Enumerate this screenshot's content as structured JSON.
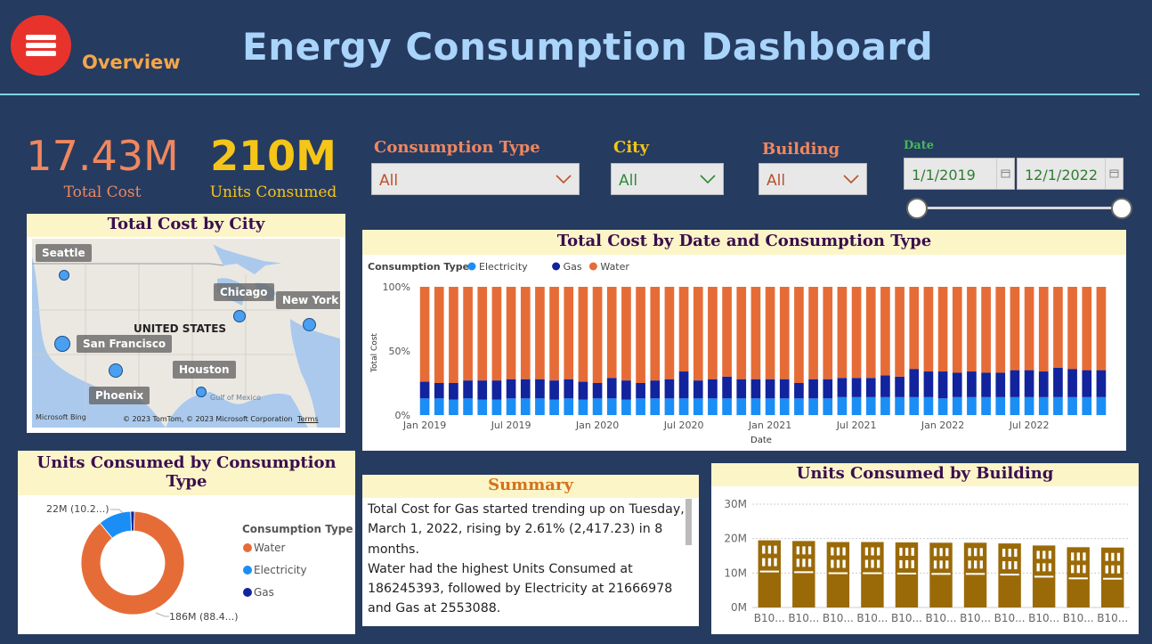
{
  "header": {
    "title": "Energy Consumption Dashboard",
    "nav_label": "Overview",
    "menu_icon": "hamburger-menu-icon"
  },
  "kpis": {
    "total_cost_value": "17.43M",
    "total_cost_label": "Total Cost",
    "units_value": "210M",
    "units_label": "Units Consumed"
  },
  "slicers": {
    "consumption_type": {
      "title": "Consumption Type",
      "value": "All"
    },
    "city": {
      "title": "City",
      "value": "All"
    },
    "building": {
      "title": "Building",
      "value": "All"
    },
    "date": {
      "title": "Date",
      "start": "1/1/2019",
      "end": "12/1/2022",
      "range_fraction": [
        0,
        1
      ]
    }
  },
  "colors": {
    "electricity": "#1a8ef5",
    "gas": "#12239e",
    "water": "#e66c37",
    "building_bar": "#9a6a08",
    "kpi_cost": "#f0875e",
    "kpi_units": "#f5c518"
  },
  "map": {
    "title": "Total Cost by City",
    "country_label": "UNITED STATES",
    "cities": [
      {
        "name": "Seattle"
      },
      {
        "name": "Chicago"
      },
      {
        "name": "New York"
      },
      {
        "name": "San Francisco"
      },
      {
        "name": "Houston"
      },
      {
        "name": "Phoenix"
      }
    ],
    "attribution_brand": "Microsoft Bing",
    "attribution_copyright": "© 2023 TomTom, © 2023 Microsoft Corporation",
    "attribution_terms": "Terms",
    "gulf_label": "Gulf of Mexico"
  },
  "stack_chart": {
    "title": "Total Cost by Date and Consumption Type",
    "legend_title": "Consumption Type",
    "xlabel": "Date",
    "ylabel": "Total Cost"
  },
  "donut_chart": {
    "title": "Units Consumed by Consumption Type",
    "legend_title": "Consumption Type",
    "label_top": "22M (10.2...)",
    "label_bottom": "186M (88.4...)"
  },
  "summary": {
    "title": "Summary",
    "text": "Total Cost for Gas started trending up on Tuesday, March 1, 2022, rising by 2.61% (2,417.23) in 8 months.\nWater had the highest Units Consumed at 186245393, followed by Electricity at 21666978 and Gas at 2553088."
  },
  "building_chart": {
    "title": "Units Consumed by Building"
  },
  "chart_data": [
    {
      "type": "bar",
      "stacked": "percent",
      "title": "Total Cost by Date and Consumption Type",
      "xlabel": "Date",
      "ylabel": "Total Cost",
      "x_tick_labels": [
        "Jan 2019",
        "Jul 2019",
        "Jan 2020",
        "Jul 2020",
        "Jan 2021",
        "Jul 2021",
        "Jan 2022",
        "Jul 2022"
      ],
      "y_tick_labels": [
        "0%",
        "50%",
        "100%"
      ],
      "ylim": [
        0,
        100
      ],
      "legend_position": "top-left",
      "series": [
        {
          "name": "Electricity",
          "values": [
            13,
            13,
            12,
            13,
            12,
            12,
            13,
            13,
            13,
            12,
            13,
            12,
            13,
            13,
            12,
            13,
            13,
            13,
            13,
            13,
            13,
            13,
            13,
            13,
            13,
            13,
            13,
            13,
            13,
            14,
            14,
            14,
            14,
            14,
            14,
            14,
            13,
            14,
            14,
            14,
            14,
            14,
            14,
            14,
            14,
            14,
            14,
            14
          ]
        },
        {
          "name": "Gas",
          "values": [
            13,
            12,
            13,
            14,
            15,
            15,
            15,
            15,
            15,
            15,
            15,
            14,
            12,
            16,
            15,
            12,
            14,
            15,
            21,
            14,
            15,
            17,
            15,
            15,
            15,
            15,
            12,
            15,
            15,
            15,
            15,
            15,
            17,
            16,
            22,
            20,
            21,
            19,
            20,
            19,
            19,
            21,
            21,
            20,
            23,
            22,
            21,
            21
          ]
        },
        {
          "name": "Water",
          "values": [
            74,
            75,
            75,
            73,
            73,
            73,
            72,
            72,
            72,
            73,
            72,
            74,
            75,
            71,
            73,
            75,
            73,
            72,
            66,
            73,
            72,
            70,
            72,
            72,
            72,
            72,
            75,
            72,
            72,
            71,
            71,
            71,
            69,
            70,
            64,
            66,
            66,
            67,
            66,
            67,
            67,
            65,
            65,
            66,
            63,
            64,
            65,
            65
          ]
        }
      ]
    },
    {
      "type": "pie",
      "donut": true,
      "title": "Units Consumed by Consumption Type",
      "legend_position": "right",
      "categories": [
        "Water",
        "Electricity",
        "Gas"
      ],
      "values": [
        186245393,
        21666978,
        2553088
      ]
    },
    {
      "type": "bar",
      "title": "Units Consumed by Building",
      "categories": [
        "B10...",
        "B10...",
        "B10...",
        "B10...",
        "B10...",
        "B10...",
        "B10...",
        "B10...",
        "B10...",
        "B10...",
        "B10..."
      ],
      "values": [
        19.5,
        19.3,
        19.0,
        19.0,
        18.9,
        18.8,
        18.8,
        18.6,
        18.0,
        17.5,
        17.4
      ],
      "y_tick_labels": [
        "0M",
        "10M",
        "20M",
        "30M"
      ],
      "ylim": [
        0,
        30
      ],
      "unit": "M"
    }
  ]
}
